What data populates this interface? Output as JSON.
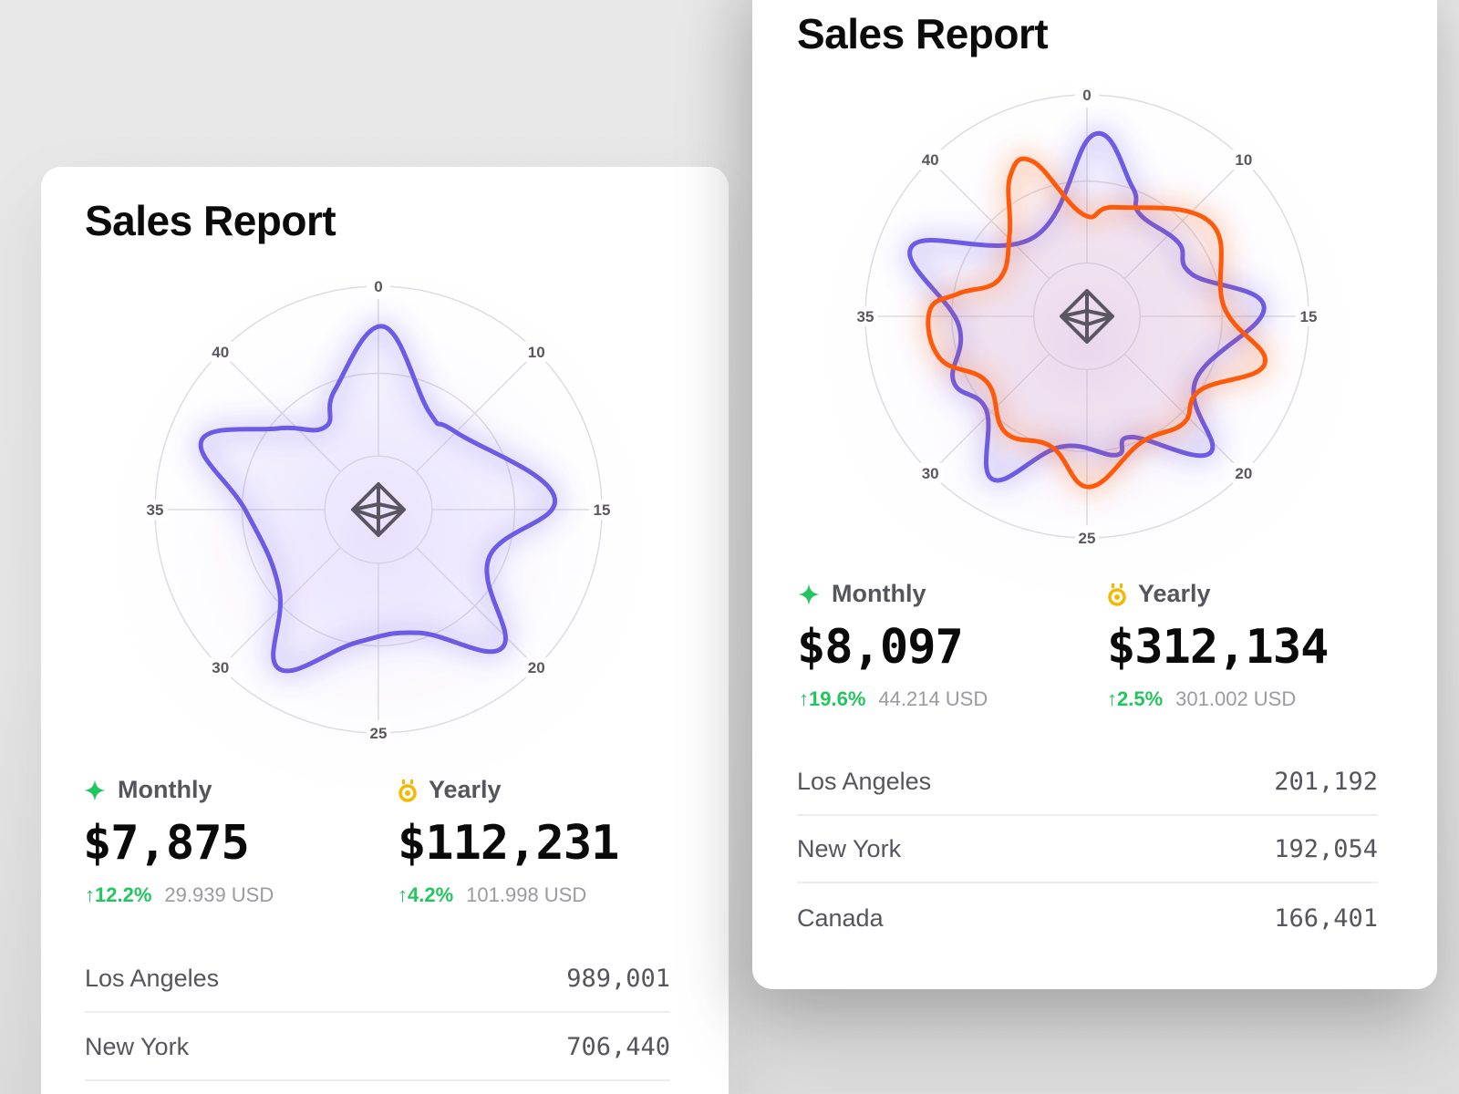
{
  "left_card": {
    "title": "Sales Report",
    "monthly": {
      "label": "Monthly",
      "value": "$7,875",
      "change": "↑12.2%",
      "usd": "29.939 USD"
    },
    "yearly": {
      "label": "Yearly",
      "value": "$112,231",
      "change": "↑4.2%",
      "usd": "101.998 USD"
    },
    "rows": [
      {
        "city": "Los Angeles",
        "value": "989,001"
      },
      {
        "city": "New York",
        "value": "706,440"
      }
    ]
  },
  "right_card": {
    "title": "Sales Report",
    "monthly": {
      "label": "Monthly",
      "value": "$8,097",
      "change": "↑19.6%",
      "usd": "44.214 USD"
    },
    "yearly": {
      "label": "Yearly",
      "value": "$312,134",
      "change": "↑2.5%",
      "usd": "301.002 USD"
    },
    "rows": [
      {
        "city": "Los Angeles",
        "value": "201,192"
      },
      {
        "city": "New York",
        "value": "192,054"
      },
      {
        "city": "Canada",
        "value": "166,401"
      }
    ]
  },
  "colors": {
    "purple": "#6b5be6",
    "orange": "#ff5a0a",
    "green": "#22c55e",
    "gold": "#f5b800"
  },
  "icons": {
    "monthly": "sparkle-icon",
    "yearly": "medal-icon",
    "center": "octahedron-icon"
  },
  "chart_data": [
    {
      "type": "radar",
      "title": "Sales Report",
      "axis_labels": [
        "0",
        "10",
        "15",
        "20",
        "25",
        "30",
        "35",
        "40"
      ],
      "theta_range": [
        0,
        45
      ],
      "r_range": [
        0,
        100
      ],
      "rings": [
        24,
        61,
        100
      ],
      "series": [
        {
          "name": "purple",
          "color": "#6b5be6",
          "points": [
            [
              0.2,
              82
            ],
            [
              3.5,
              49
            ],
            [
              5.6,
              49
            ],
            [
              10.75,
              79
            ],
            [
              14.25,
              54
            ],
            [
              17.25,
              83
            ],
            [
              20.25,
              58
            ],
            [
              23.6,
              60
            ],
            [
              26.5,
              84
            ],
            [
              28.9,
              57
            ],
            [
              33.6,
              59
            ],
            [
              36.4,
              85
            ],
            [
              38.6,
              58
            ],
            [
              40.9,
              44
            ],
            [
              42.5,
              57
            ]
          ]
        }
      ]
    },
    {
      "type": "radar",
      "title": "Sales Report",
      "axis_labels": [
        "0",
        "10",
        "15",
        "20",
        "25",
        "30",
        "35",
        "40"
      ],
      "theta_range": [
        0,
        45
      ],
      "r_range": [
        0,
        100
      ],
      "rings": [
        24,
        61,
        100
      ],
      "series": [
        {
          "name": "purple",
          "color": "#6b5be6",
          "points": [
            [
              0.25,
              82
            ],
            [
              2.4,
              62
            ],
            [
              3.4,
              52
            ],
            [
              6.4,
              53
            ],
            [
              8.5,
              51
            ],
            [
              10.9,
              80
            ],
            [
              15.1,
              57
            ],
            [
              17.25,
              83
            ],
            [
              20,
              58
            ],
            [
              21,
              64
            ],
            [
              23.9,
              60
            ],
            [
              26.25,
              85
            ],
            [
              28.4,
              62
            ],
            [
              30.5,
              67
            ],
            [
              33.25,
              58
            ],
            [
              36.5,
              85
            ],
            [
              40.75,
              43
            ]
          ]
        },
        {
          "name": "orange",
          "color": "#ff5a0a",
          "points": [
            [
              1.9,
              51
            ],
            [
              6.6,
              70
            ],
            [
              10.75,
              62
            ],
            [
              13.1,
              83
            ],
            [
              15.4,
              61
            ],
            [
              17.25,
              65
            ],
            [
              19.6,
              62
            ],
            [
              22.4,
              77
            ],
            [
              24.4,
              61
            ],
            [
              26.9,
              64
            ],
            [
              29.6,
              54
            ],
            [
              31.75,
              69
            ],
            [
              34,
              71
            ],
            [
              35,
              59
            ],
            [
              36.6,
              43
            ],
            [
              39.6,
              51
            ],
            [
              41.4,
              72
            ],
            [
              42.6,
              74
            ],
            [
              44.75,
              46
            ]
          ]
        }
      ]
    }
  ]
}
